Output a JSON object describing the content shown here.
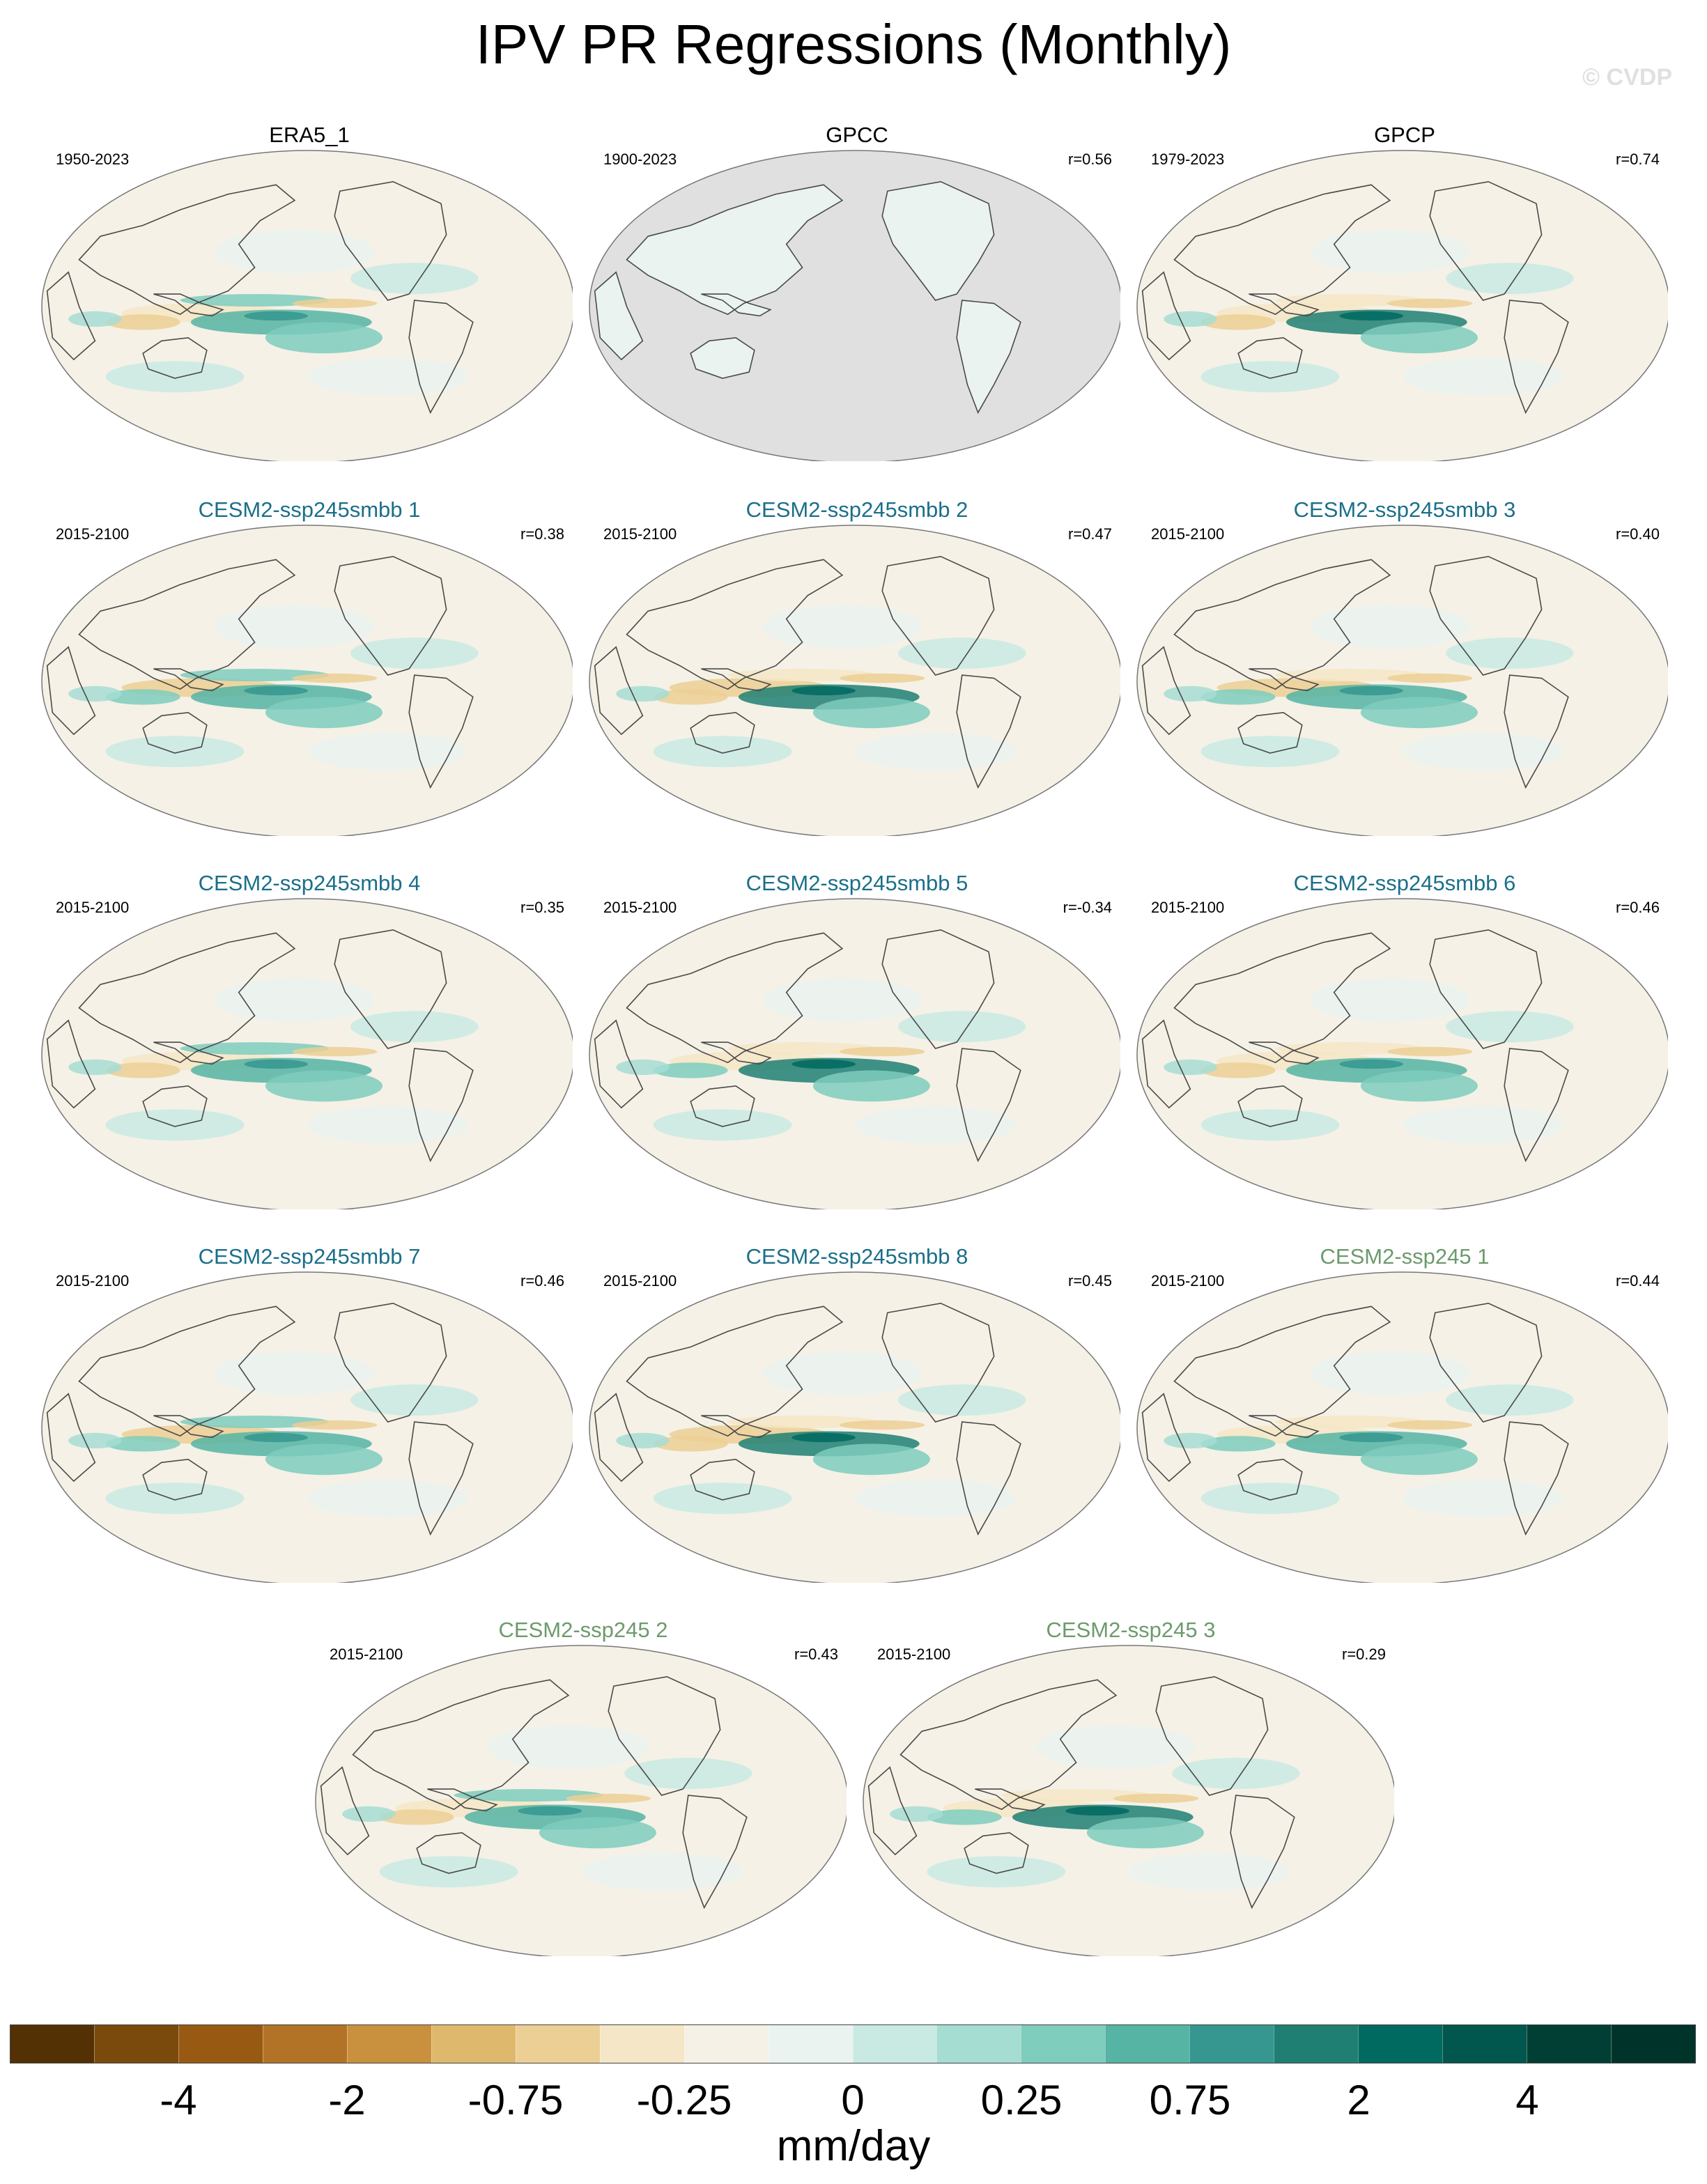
{
  "title": "IPV PR Regressions (Monthly)",
  "watermark": "© CVDP",
  "units": "mm/day",
  "colors": {
    "obs_title": "#000000",
    "smbb_title": "#1b6f8a",
    "ssp245_title": "#6d9a6d",
    "land_mask": "#e0e0e0",
    "coast": "#4a4a4a",
    "scale": [
      "#543005",
      "#7a4a0d",
      "#985a12",
      "#b37326",
      "#c9903e",
      "#deb86d",
      "#eccf94",
      "#f4e6c6",
      "#f5f1e6",
      "#eaf3f0",
      "#c8eae3",
      "#a6ddd3",
      "#7ecdbd",
      "#55b4a3",
      "#35978f",
      "#1f7f73",
      "#006a60",
      "#01574d",
      "#013f34",
      "#00342a"
    ]
  },
  "colorbar_labels": [
    "-4",
    "-2",
    "-0.75",
    "-0.25",
    "0",
    "0.25",
    "0.75",
    "2",
    "4"
  ],
  "panels": [
    {
      "name": "ERA5_1",
      "years": "1950-2023",
      "r": "",
      "group": "obs"
    },
    {
      "name": "GPCC",
      "years": "1900-2023",
      "r": "r=0.56",
      "group": "obs",
      "ocean_masked": true
    },
    {
      "name": "GPCP",
      "years": "1979-2023",
      "r": "r=0.74",
      "group": "obs"
    },
    {
      "name": "CESM2-ssp245smbb 1",
      "years": "2015-2100",
      "r": "r=0.38",
      "group": "smbb"
    },
    {
      "name": "CESM2-ssp245smbb 2",
      "years": "2015-2100",
      "r": "r=0.47",
      "group": "smbb"
    },
    {
      "name": "CESM2-ssp245smbb 3",
      "years": "2015-2100",
      "r": "r=0.40",
      "group": "smbb"
    },
    {
      "name": "CESM2-ssp245smbb 4",
      "years": "2015-2100",
      "r": "r=0.35",
      "group": "smbb"
    },
    {
      "name": "CESM2-ssp245smbb 5",
      "years": "2015-2100",
      "r": "r=-0.34",
      "group": "smbb"
    },
    {
      "name": "CESM2-ssp245smbb 6",
      "years": "2015-2100",
      "r": "r=0.46",
      "group": "smbb"
    },
    {
      "name": "CESM2-ssp245smbb 7",
      "years": "2015-2100",
      "r": "r=0.46",
      "group": "smbb"
    },
    {
      "name": "CESM2-ssp245smbb 8",
      "years": "2015-2100",
      "r": "r=0.45",
      "group": "smbb"
    },
    {
      "name": "CESM2-ssp245 1",
      "years": "2015-2100",
      "r": "r=0.44",
      "group": "ssp245"
    },
    {
      "name": "CESM2-ssp245 2",
      "years": "2015-2100",
      "r": "r=0.43",
      "group": "ssp245"
    },
    {
      "name": "CESM2-ssp245 3",
      "years": "2015-2100",
      "r": "r=0.29",
      "group": "ssp245"
    }
  ]
}
